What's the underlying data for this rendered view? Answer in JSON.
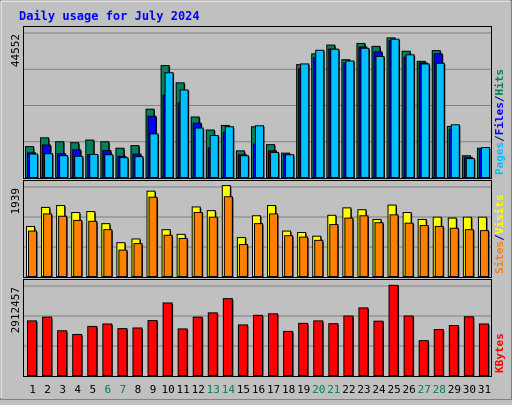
{
  "chart_data": {
    "type": "bar",
    "title": "Daily usage for July 2024",
    "days": [
      "1",
      "2",
      "3",
      "4",
      "5",
      "6",
      "7",
      "8",
      "9",
      "10",
      "11",
      "12",
      "13",
      "14",
      "15",
      "16",
      "17",
      "18",
      "19",
      "20",
      "21",
      "22",
      "23",
      "24",
      "25",
      "26",
      "27",
      "28",
      "29",
      "30",
      "31"
    ],
    "weekend_days": [
      "6",
      "7",
      "13",
      "14",
      "20",
      "21",
      "27",
      "28"
    ],
    "panels": [
      {
        "key": "traffic",
        "max_label": "44552",
        "ymax": 44552,
        "series": [
          {
            "name": "Hits",
            "color": "#00805c",
            "values": [
              9800,
              12500,
              11300,
              11000,
              11800,
              11300,
              9300,
              10100,
              21300,
              34700,
              29400,
              18900,
              14900,
              16300,
              8500,
              15900,
              10400,
              7800,
              35000,
              38300,
              41000,
              36500,
              41500,
              40600,
              43200,
              39100,
              36000,
              39300,
              16000,
              7000,
              9300
            ]
          },
          {
            "name": "Files",
            "color": "#0000ff",
            "values": [
              7900,
              10300,
              7600,
              8800,
              7300,
              8600,
              6800,
              7500,
              19100,
              25600,
              23200,
              17000,
              9400,
              14200,
              7300,
              10600,
              8500,
              7300,
              33800,
              37200,
              39800,
              35500,
              40400,
              38900,
              42300,
              37300,
              35500,
              38300,
              15100,
              6500,
              8800
            ]
          },
          {
            "name": "Pages",
            "color": "#00c0ff",
            "values": [
              7500,
              7600,
              7000,
              6800,
              7400,
              7300,
              6400,
              6700,
              13700,
              32500,
              27200,
              15500,
              13200,
              15900,
              7000,
              16200,
              8000,
              7300,
              35200,
              39400,
              39700,
              36100,
              40000,
              37500,
              42800,
              38000,
              35200,
              35400,
              16500,
              6100,
              9500
            ]
          }
        ],
        "legend": [
          "Pages",
          "/",
          "Files",
          "/",
          "Hits"
        ],
        "legend_colors": [
          "#00c0ff",
          "#000080",
          "#0000ff",
          "#000080",
          "#00805c"
        ]
      },
      {
        "key": "visits",
        "max_label": "1939",
        "ymax": 1939,
        "series": [
          {
            "name": "Visits",
            "color": "#ffff00",
            "values": [
              1100,
              1510,
              1550,
              1400,
              1420,
              1160,
              750,
              830,
              1860,
              1030,
              930,
              1520,
              1440,
              1980,
              860,
              1330,
              1550,
              1000,
              970,
              890,
              1340,
              1500,
              1460,
              1250,
              1560,
              1400,
              1250,
              1300,
              1280,
              1300,
              1300
            ]
          },
          {
            "name": "Sites",
            "color": "#ff8000",
            "values": [
              1000,
              1370,
              1320,
              1230,
              1210,
              1030,
              590,
              730,
              1730,
              910,
              840,
              1400,
              1300,
              1740,
              710,
              1160,
              1370,
              900,
              870,
              800,
              1140,
              1280,
              1330,
              1180,
              1350,
              1170,
              1120,
              1100,
              1060,
              1030,
              1010
            ]
          }
        ],
        "legend": [
          "Sites",
          "/",
          "Visits"
        ],
        "legend_colors": [
          "#ff8000",
          "#000080",
          "#ffff00"
        ]
      },
      {
        "key": "kbytes",
        "max_label": "2912457",
        "ymax": 2912457,
        "series": [
          {
            "name": "KBytes",
            "color": "#ff0000",
            "values": [
              1800000,
              1920000,
              1480000,
              1360000,
              1620000,
              1700000,
              1550000,
              1570000,
              1810000,
              2380000,
              1540000,
              1920000,
              2060000,
              2520000,
              1670000,
              1980000,
              2030000,
              1460000,
              1720000,
              1800000,
              1710000,
              1960000,
              2220000,
              1790000,
              2950000,
              1960000,
              1160000,
              1520000,
              1650000,
              1930000,
              1700000
            ]
          }
        ],
        "legend": [
          "KBytes"
        ],
        "legend_colors": [
          "#ff0000"
        ]
      }
    ],
    "colors": {
      "background": "#c0c0c0",
      "plot_bg": "#c0c0c0",
      "title": "#0000ff",
      "weekday_label": "#000000",
      "weekend_label": "#00805c"
    }
  }
}
